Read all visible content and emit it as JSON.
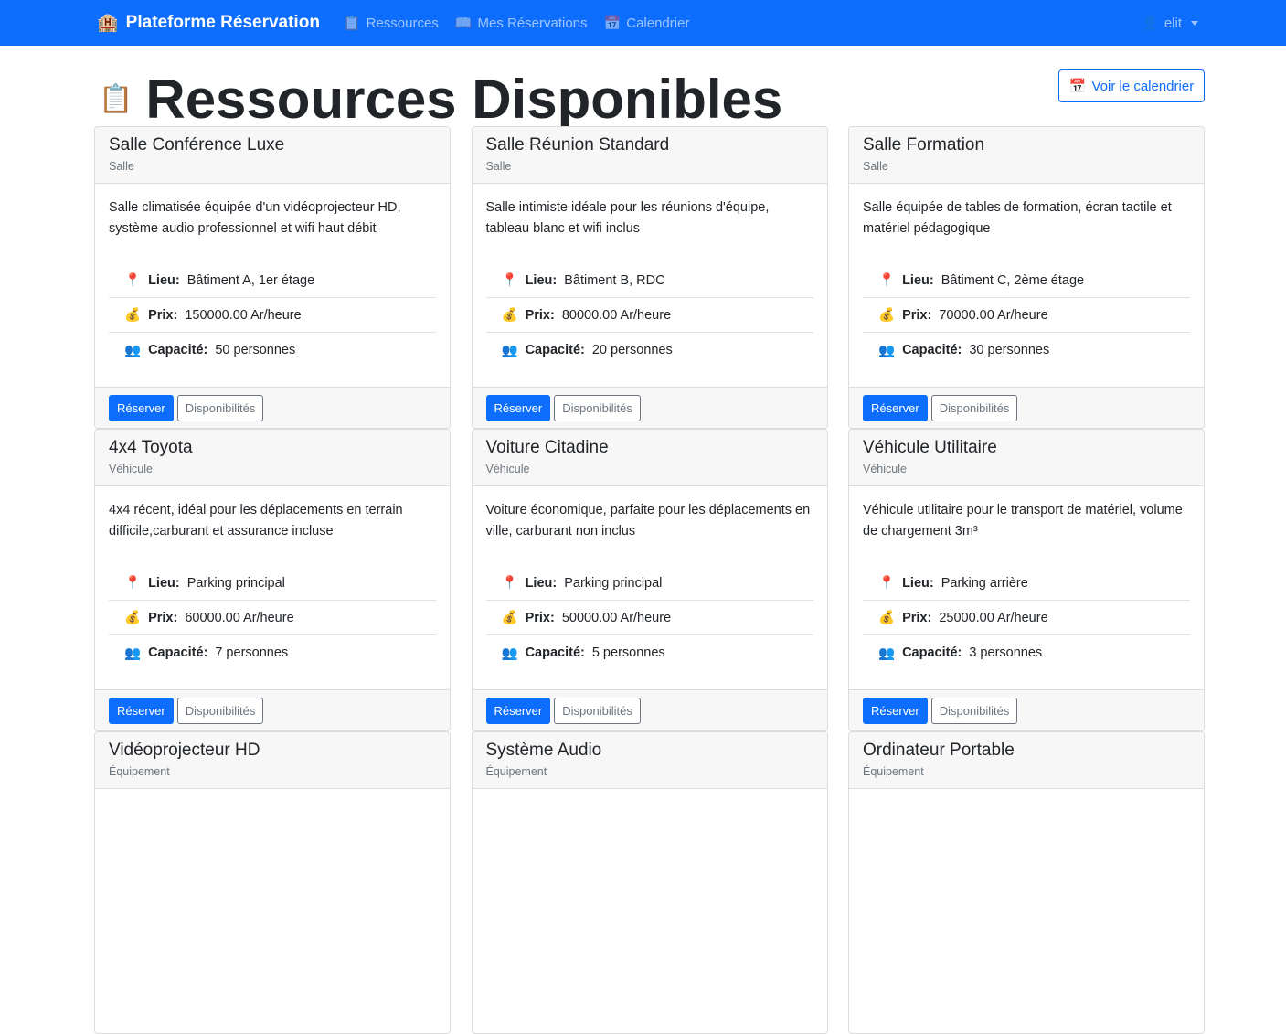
{
  "nav": {
    "brand": "Plateforme Réservation",
    "brand_icon": "🏨",
    "links": [
      {
        "icon": "📋",
        "label": "Ressources"
      },
      {
        "icon": "📖",
        "label": "Mes Réservations"
      },
      {
        "icon": "📅",
        "label": "Calendrier"
      }
    ],
    "user": "elit",
    "user_icon": "👤"
  },
  "page": {
    "icon": "📋",
    "title": "Ressources Disponibles",
    "calendar_button": "Voir le calendrier",
    "calendar_icon": "📅"
  },
  "labels": {
    "lieu": "Lieu:",
    "prix": "Prix:",
    "capacite": "Capacité:",
    "reserve": "Réserver",
    "dispo": "Disponibilités",
    "lieu_icon": "📍",
    "prix_icon": "💰",
    "cap_icon": "👥"
  },
  "resources": [
    {
      "name": "Salle Conférence Luxe",
      "type": "Salle",
      "desc": "Salle climatisée équipée d'un vidéoprojecteur HD, système audio professionnel et wifi haut débit",
      "lieu": "Bâtiment A, 1er étage",
      "prix": "150000.00 Ar/heure",
      "capacite": "50 personnes"
    },
    {
      "name": "Salle Réunion Standard",
      "type": "Salle",
      "desc": "Salle intimiste idéale pour les réunions d'équipe, tableau blanc et wifi inclus",
      "lieu": "Bâtiment B, RDC",
      "prix": "80000.00 Ar/heure",
      "capacite": "20 personnes"
    },
    {
      "name": "Salle Formation",
      "type": "Salle",
      "desc": "Salle équipée de tables de formation, écran tactile et matériel pédagogique",
      "lieu": "Bâtiment C, 2ème étage",
      "prix": "70000.00 Ar/heure",
      "capacite": "30 personnes"
    },
    {
      "name": "4x4 Toyota",
      "type": "Véhicule",
      "desc": "4x4 récent, idéal pour les déplacements en terrain difficile,carburant et assurance incluse",
      "lieu": "Parking principal",
      "prix": "60000.00 Ar/heure",
      "capacite": "7 personnes"
    },
    {
      "name": "Voiture Citadine",
      "type": "Véhicule",
      "desc": "Voiture économique, parfaite pour les déplacements en ville, carburant non inclus",
      "lieu": "Parking principal",
      "prix": "50000.00 Ar/heure",
      "capacite": "5 personnes"
    },
    {
      "name": "Véhicule Utilitaire",
      "type": "Véhicule",
      "desc": "Véhicule utilitaire pour le transport de matériel, volume de chargement 3m³",
      "lieu": "Parking arrière",
      "prix": "25000.00 Ar/heure",
      "capacite": "3 personnes"
    },
    {
      "name": "Vidéoprojecteur HD",
      "type": "Équipement"
    },
    {
      "name": "Système Audio",
      "type": "Équipement"
    },
    {
      "name": "Ordinateur Portable",
      "type": "Équipement"
    }
  ]
}
